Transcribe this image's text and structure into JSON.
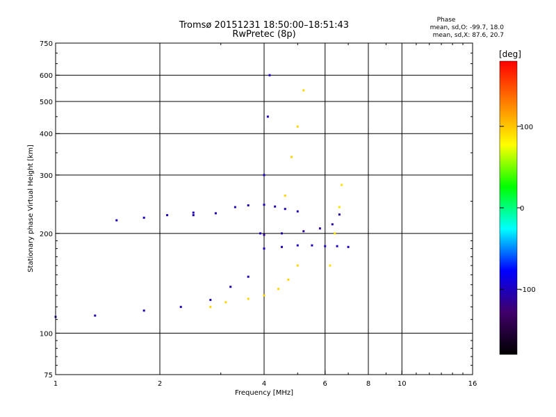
{
  "title": "Tromsø 20151231 18:50:00–18:51:43",
  "subtitle": "RwPretec (8p)",
  "phase_box": {
    "heading": "Phase",
    "line1": "mean, sd,O: -99.7, 18.0",
    "line2": "mean, sd,X:  87.6, 20.7"
  },
  "chart_data": {
    "type": "scatter",
    "title": "Tromsø 20151231 18:50:00–18:51:43",
    "subtitle": "RwPretec (8p)",
    "xlabel": "Frequency [MHz]",
    "ylabel": "Stationary phase Virtual Height [km]",
    "xscale": "log",
    "yscale": "log",
    "xlim": [
      1,
      16
    ],
    "ylim": [
      75,
      750
    ],
    "xticks": [
      1,
      2,
      4,
      6,
      8,
      10,
      16
    ],
    "yticks": [
      75,
      100,
      200,
      300,
      400,
      500,
      600,
      750
    ],
    "grid": true,
    "colorbar": {
      "label": "[deg]",
      "range": [
        -180,
        180
      ],
      "ticks": [
        -100,
        0,
        100
      ],
      "colors": [
        "#000000",
        "#40006a",
        "#0000ff",
        "#00ffff",
        "#00ff00",
        "#ffff00",
        "#ff8000",
        "#ff0000"
      ]
    },
    "series": [
      {
        "x": [
          1.0,
          1.3,
          1.8,
          2.3,
          2.8,
          3.2,
          3.6
        ],
        "y": [
          112,
          113,
          117,
          120,
          126,
          138,
          148
        ],
        "phase": -105
      },
      {
        "x": [
          1.5,
          1.8,
          2.1,
          2.5
        ],
        "y": [
          219,
          223,
          227,
          231
        ],
        "phase": -100
      },
      {
        "x": [
          2.5,
          2.9,
          3.3,
          3.6,
          4.0,
          4.3,
          4.6,
          5.0
        ],
        "y": [
          227,
          230,
          240,
          243,
          244,
          241,
          237,
          233
        ],
        "phase": -105
      },
      {
        "x": [
          2.8,
          3.1,
          3.6,
          4.0,
          4.4,
          4.7,
          5.0
        ],
        "y": [
          120,
          124,
          127,
          130,
          136,
          145,
          160
        ],
        "phase": 95
      },
      {
        "x": [
          3.9,
          4.0,
          4.1,
          4.15
        ],
        "y": [
          200,
          300,
          450,
          600
        ],
        "phase": -100
      },
      {
        "x": [
          4.6,
          4.8,
          5.0,
          5.2
        ],
        "y": [
          260,
          340,
          420,
          540
        ],
        "phase": 95
      },
      {
        "x": [
          4.0,
          4.5,
          5.0,
          5.5,
          6.0,
          6.5,
          7.0
        ],
        "y": [
          180,
          182,
          184,
          184,
          183,
          183,
          182
        ],
        "phase": -100
      },
      {
        "x": [
          4.0,
          4.5,
          5.2,
          5.8,
          6.3,
          6.6
        ],
        "y": [
          198,
          200,
          203,
          207,
          213,
          228
        ],
        "phase": -110
      },
      {
        "x": [
          6.2,
          6.4,
          6.6,
          6.7
        ],
        "y": [
          160,
          200,
          240,
          280
        ],
        "phase": 90
      }
    ]
  }
}
